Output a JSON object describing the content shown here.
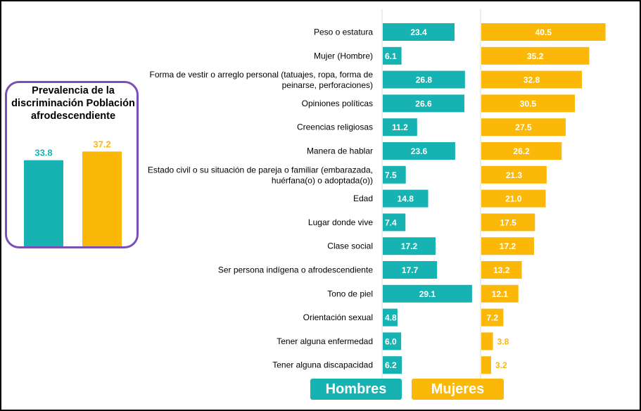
{
  "chart_data": [
    {
      "type": "bar",
      "orientation": "horizontal",
      "categories": [
        "Peso o estatura",
        "Mujer (Hombre)",
        "Forma de vestir o arreglo personal (tatuajes, ropa, forma de peinarse, perforaciones)",
        "Opiniones políticas",
        "Creencias religiosas",
        "Manera de hablar",
        "Estado civil o su situación de pareja o familiar (embarazada, huérfana(o) o adoptada(o))",
        "Edad",
        "Lugar donde vive",
        "Clase social",
        "Ser persona indígena o afrodescendiente",
        "Tono de piel",
        "Orientación sexual",
        "Tener alguna enfermedad",
        "Tener alguna discapacidad"
      ],
      "category_lines": [
        [
          "Peso o estatura"
        ],
        [
          "Mujer (Hombre)"
        ],
        [
          "Forma de vestir o arreglo personal (tatuajes, ropa, forma de",
          "peinarse, perforaciones)"
        ],
        [
          "Opiniones políticas"
        ],
        [
          "Creencias religiosas"
        ],
        [
          "Manera de hablar"
        ],
        [
          "Estado civil o su situación de pareja o familiar (embarazada,",
          "huérfana(o) o adoptada(o))"
        ],
        [
          "Edad"
        ],
        [
          "Lugar donde vive"
        ],
        [
          "Clase social"
        ],
        [
          "Ser persona indígena o afrodescendiente"
        ],
        [
          "Tono de piel"
        ],
        [
          "Orientación sexual"
        ],
        [
          "Tener alguna enfermedad"
        ],
        [
          "Tener alguna discapacidad"
        ]
      ],
      "series": [
        {
          "name": "Hombres",
          "color": "#17b2b2",
          "values": [
            23.4,
            6.1,
            26.8,
            26.6,
            11.2,
            23.6,
            7.5,
            14.8,
            7.4,
            17.2,
            17.7,
            29.1,
            4.8,
            6.0,
            6.2
          ]
        },
        {
          "name": "Mujeres",
          "color": "#fbb809",
          "values": [
            40.5,
            35.2,
            32.8,
            30.5,
            27.5,
            26.2,
            21.3,
            21.0,
            17.5,
            17.2,
            13.2,
            12.1,
            7.2,
            3.8,
            3.2
          ]
        }
      ],
      "value_format": "0.0",
      "legend_position": "bottom",
      "grid": false
    },
    {
      "type": "bar",
      "title": "Prevalencia de la discriminación Población afrodescendiente",
      "series": [
        {
          "name": "Hombres",
          "color": "#17b2b2",
          "values": [
            33.8
          ]
        },
        {
          "name": "Mujeres",
          "color": "#fbb809",
          "values": [
            37.2
          ]
        }
      ],
      "value_format": "0.0",
      "grid": false
    }
  ],
  "legend": {
    "hombres": "Hombres",
    "mujeres": "Mujeres"
  }
}
